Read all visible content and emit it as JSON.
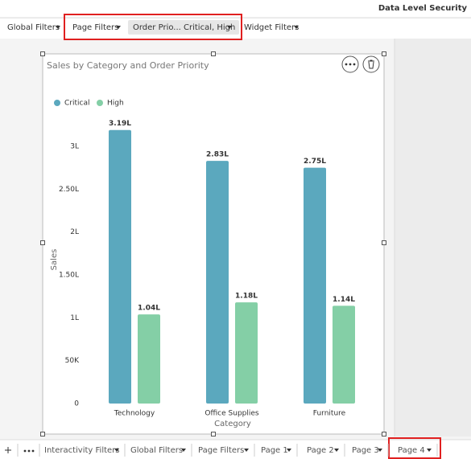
{
  "header": {
    "title": "Data Level Security"
  },
  "filter_bar": {
    "items": [
      "Global Filters",
      "Page Filters",
      "Widget Filters"
    ],
    "active_filter": "Order Prio... Critical, High"
  },
  "widget": {
    "chart_data": {
      "type": "bar",
      "title": "Sales by Category and Order Priority",
      "x_label": "Category",
      "y_label": "Sales",
      "categories": [
        "Technology",
        "Office Supplies",
        "Furniture"
      ],
      "series": [
        {
          "name": "Critical",
          "color": "#5ba8be",
          "values": [
            319000,
            283000,
            275000
          ],
          "value_labels": [
            "3.19L",
            "2.83L",
            "2.75L"
          ]
        },
        {
          "name": "High",
          "color": "#84cfa6",
          "values": [
            104000,
            118000,
            114000
          ],
          "value_labels": [
            "1.04L",
            "1.18L",
            "1.14L"
          ]
        }
      ],
      "ylim": [
        0,
        330000
      ],
      "yticks": [
        0,
        {
          "value": 50000,
          "label": "50K"
        },
        {
          "value": 100000,
          "label": "1L"
        },
        {
          "value": 150000,
          "label": "1.50L"
        },
        {
          "value": 200000,
          "label": "2L"
        },
        {
          "value": 250000,
          "label": "2.50L"
        },
        {
          "value": 300000,
          "label": "3L"
        }
      ],
      "legend": "top-left",
      "grid": false
    }
  },
  "tabs": [
    "Interactivity Filters",
    "Global Filters",
    "Page Filters",
    "Page 1",
    "Page 2",
    "Page 3",
    "Page 4"
  ]
}
